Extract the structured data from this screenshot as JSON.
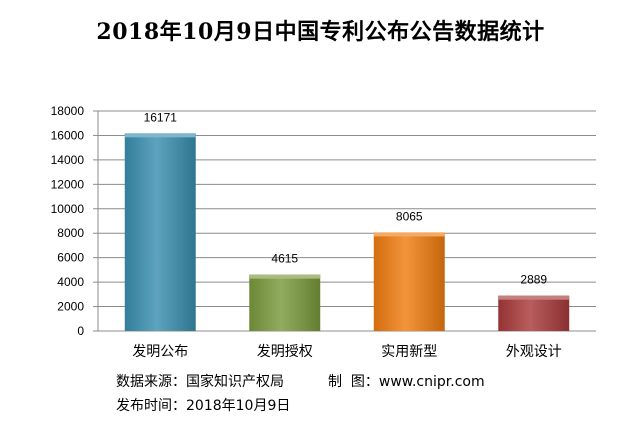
{
  "chart_data": {
    "type": "bar",
    "title": "2018年10月9日中国专利公布公告数据统计",
    "categories": [
      "发明公布",
      "发明授权",
      "实用新型",
      "外观设计"
    ],
    "values": [
      16171,
      4615,
      8065,
      2889
    ],
    "data_labels": [
      "16171",
      "4615",
      "8065",
      "2889"
    ],
    "ylim": [
      0,
      18000
    ],
    "yticks": [
      "0",
      "2000",
      "4000",
      "6000",
      "8000",
      "10000",
      "12000",
      "14000",
      "16000",
      "18000"
    ],
    "grid": true,
    "legend": "none",
    "colors": [
      "#3a8fb0",
      "#7a9a3c",
      "#f07c10",
      "#a83a3a"
    ]
  },
  "footer": {
    "source_label": "数据来源：",
    "source_value": "国家知识产权局",
    "maker_label": "制  图：",
    "maker_value": "www.cnipr.com",
    "date_label": "发布时间：",
    "date_value": "2018年10月9日"
  }
}
